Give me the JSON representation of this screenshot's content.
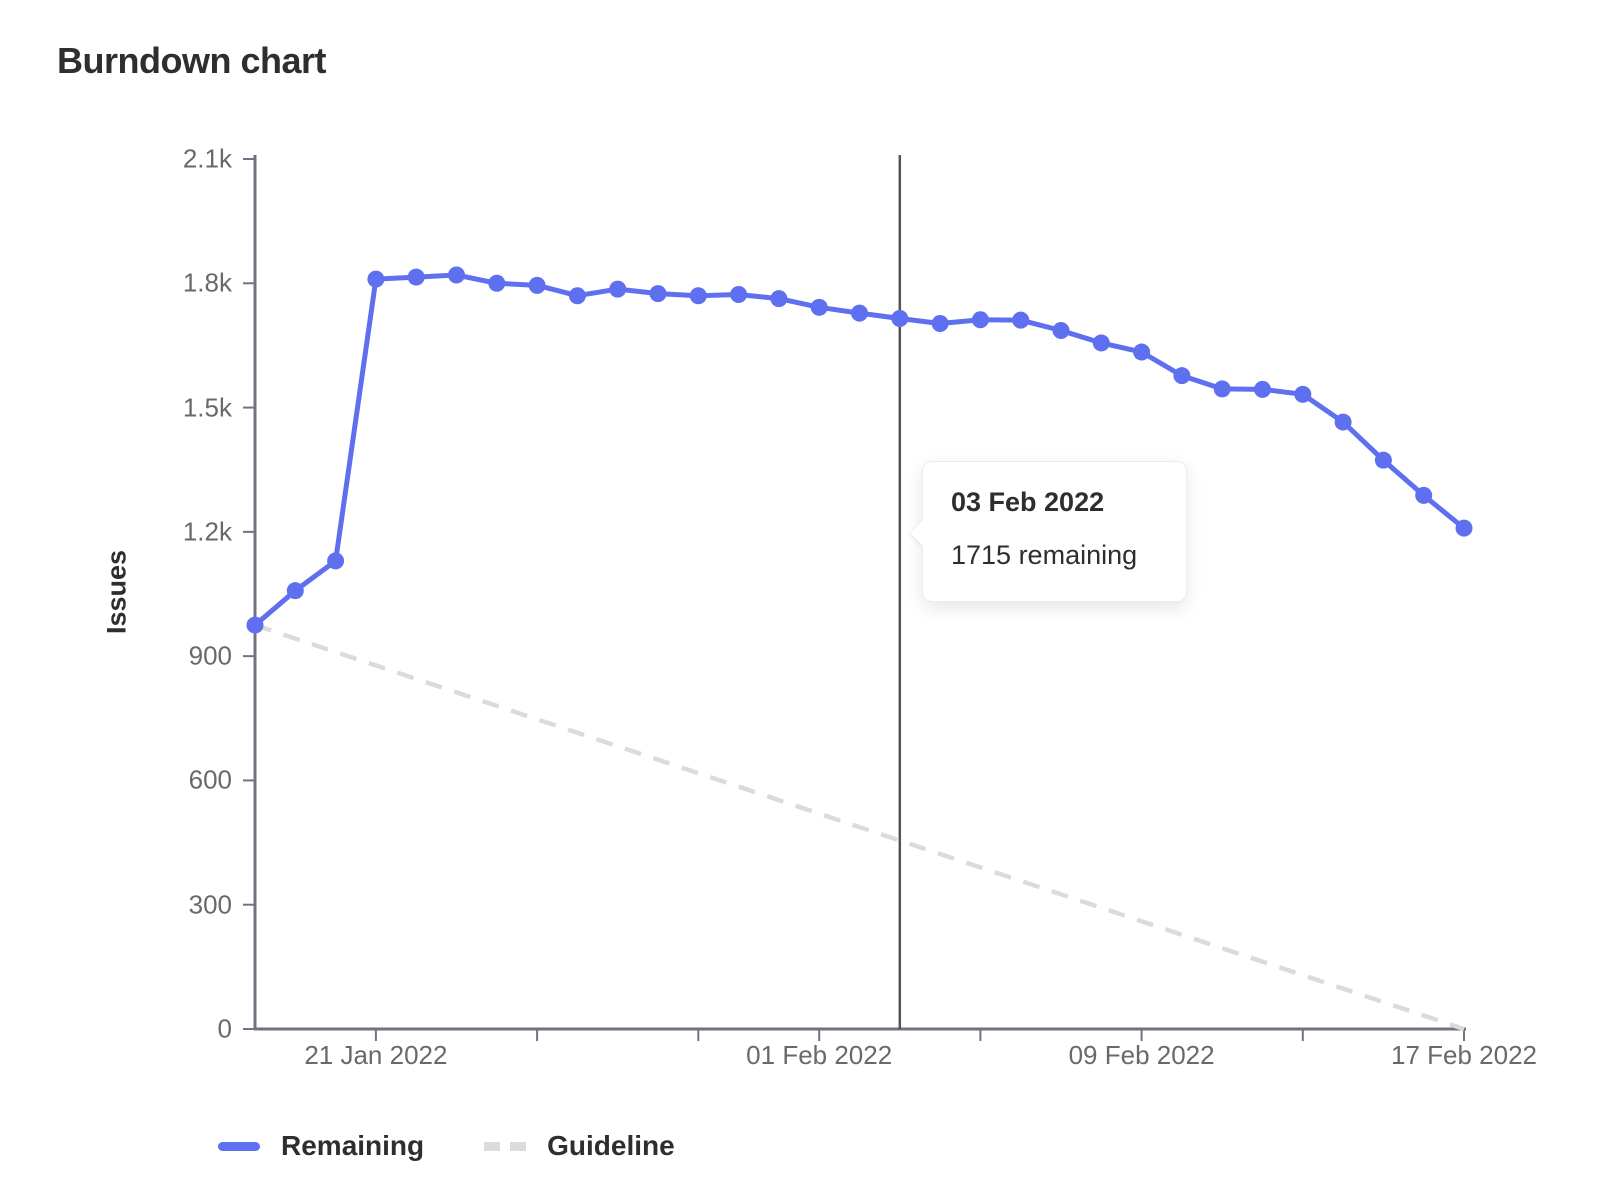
{
  "page": {
    "title": "Burndown chart"
  },
  "tooltip": {
    "title": "03 Feb 2022",
    "body": "1715 remaining"
  },
  "legend": {
    "remaining_label": "Remaining",
    "guideline_label": "Guideline"
  },
  "colors": {
    "remaining": "#5e6ff0",
    "guideline": "#dbdbdb",
    "axis": "#6f7380",
    "tick_label": "#696969",
    "today_line": "#545454",
    "text_dark": "#2e2e2e"
  },
  "chart_data": {
    "type": "line",
    "title": "Burndown chart",
    "xlabel": "",
    "ylabel": "Issues",
    "ylim": [
      0,
      2100
    ],
    "grid": false,
    "legend_position": "bottom",
    "y_ticks": [
      {
        "value": 0,
        "label": "0"
      },
      {
        "value": 300,
        "label": "300"
      },
      {
        "value": 600,
        "label": "600"
      },
      {
        "value": 900,
        "label": "900"
      },
      {
        "value": 1200,
        "label": "1.2k"
      },
      {
        "value": 1500,
        "label": "1.5k"
      },
      {
        "value": 1800,
        "label": "1.8k"
      },
      {
        "value": 2100,
        "label": "2.1k"
      }
    ],
    "x": [
      "18 Jan 2022",
      "19 Jan 2022",
      "20 Jan 2022",
      "21 Jan 2022",
      "22 Jan 2022",
      "23 Jan 2022",
      "24 Jan 2022",
      "25 Jan 2022",
      "26 Jan 2022",
      "27 Jan 2022",
      "28 Jan 2022",
      "29 Jan 2022",
      "30 Jan 2022",
      "31 Jan 2022",
      "01 Feb 2022",
      "02 Feb 2022",
      "03 Feb 2022",
      "04 Feb 2022",
      "05 Feb 2022",
      "06 Feb 2022",
      "07 Feb 2022",
      "08 Feb 2022",
      "09 Feb 2022",
      "10 Feb 2022",
      "11 Feb 2022",
      "12 Feb 2022",
      "13 Feb 2022",
      "14 Feb 2022",
      "15 Feb 2022",
      "16 Feb 2022",
      "17 Feb 2022"
    ],
    "x_minor_tick_days": [
      3,
      7,
      11,
      14,
      18,
      22,
      26,
      30
    ],
    "x_axis_labels": [
      {
        "day": 3,
        "label": "21 Jan 2022"
      },
      {
        "day": 14,
        "label": "01 Feb 2022"
      },
      {
        "day": 22,
        "label": "09 Feb 2022"
      },
      {
        "day": 30,
        "label": "17 Feb 2022"
      }
    ],
    "series": [
      {
        "name": "Remaining",
        "style": "solid",
        "values": [
          975,
          1058,
          1130,
          1810,
          1815,
          1820,
          1800,
          1795,
          1770,
          1786,
          1775,
          1770,
          1773,
          1763,
          1742,
          1728,
          1715,
          1703,
          1712,
          1711,
          1686,
          1656,
          1634,
          1577,
          1545,
          1544,
          1532,
          1465,
          1373,
          1288,
          1209
        ]
      },
      {
        "name": "Guideline",
        "style": "dashed",
        "endpoints": [
          {
            "day": 0,
            "value": 975
          },
          {
            "day": 30,
            "value": 0
          }
        ]
      }
    ],
    "today_marker": {
      "day": 16,
      "date": "03 Feb 2022",
      "remaining": 1715
    }
  }
}
